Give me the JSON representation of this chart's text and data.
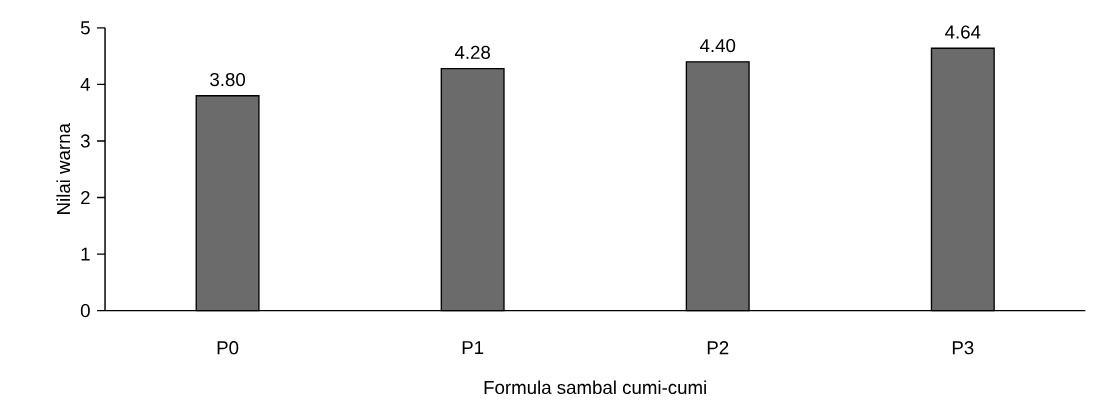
{
  "chart_data": {
    "type": "bar",
    "xlabel": "Formula sambal cumi-cumi",
    "ylabel": "Nilai warna",
    "categories": [
      "P0",
      "P1",
      "P2",
      "P3"
    ],
    "values": [
      3.8,
      4.28,
      4.4,
      4.64
    ],
    "value_labels": [
      "3.80",
      "4.28",
      "4.40",
      "4.64"
    ],
    "color": "#6b6b6b",
    "ylim": [
      0,
      5
    ],
    "yticks": [
      0,
      1,
      2,
      3,
      4,
      5
    ],
    "grid": false
  }
}
